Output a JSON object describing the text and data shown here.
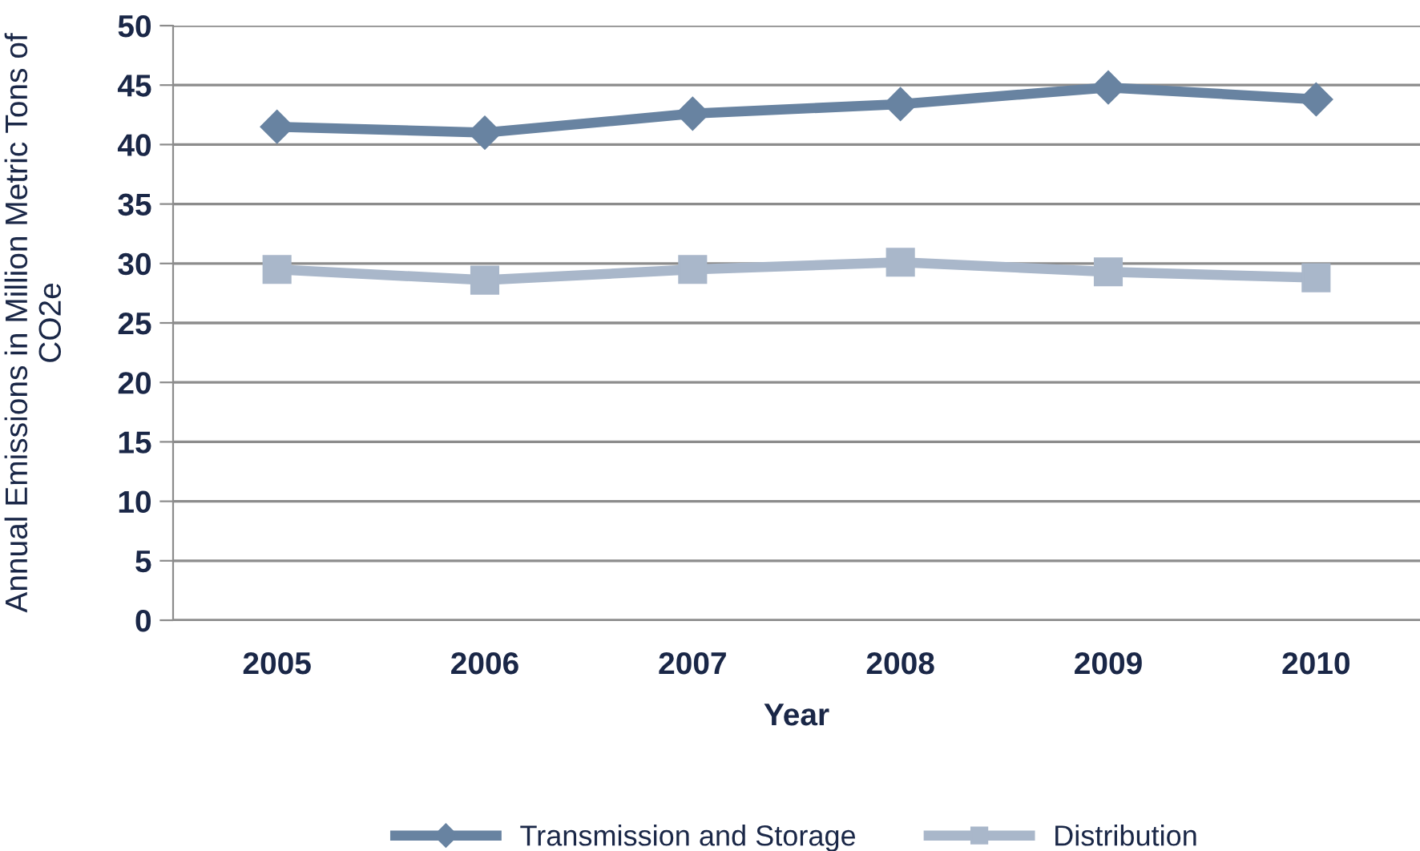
{
  "chart_data": {
    "type": "line",
    "xlabel": "Year",
    "ylabel": "Annual Emissions in Million Metric Tons of CO2e",
    "categories": [
      "2005",
      "2006",
      "2007",
      "2008",
      "2009",
      "2010"
    ],
    "series": [
      {
        "name": "Transmission and Storage",
        "color": "#6883a1",
        "marker": "diamond",
        "values": [
          41.5,
          41.0,
          42.6,
          43.4,
          44.8,
          43.8
        ]
      },
      {
        "name": "Distribution",
        "color": "#a9b7ca",
        "marker": "square",
        "values": [
          29.5,
          28.6,
          29.5,
          30.1,
          29.3,
          28.8
        ]
      }
    ],
    "ylim": [
      0,
      50
    ],
    "yticks": [
      0,
      5,
      10,
      15,
      20,
      25,
      30,
      35,
      40,
      45,
      50
    ],
    "grid": "y",
    "legend": "bottom",
    "line_style": "solid"
  }
}
